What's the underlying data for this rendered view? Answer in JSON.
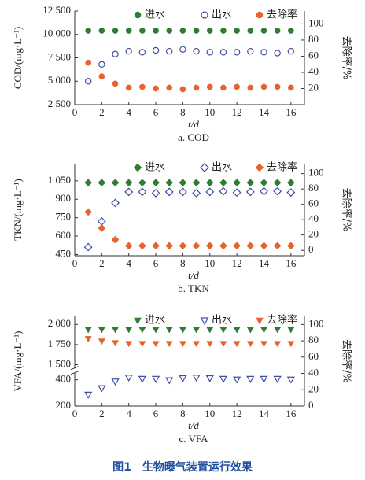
{
  "chart_data": [
    {
      "type": "scatter",
      "marker": "circle",
      "caption": "a. COD",
      "ylabel": "COD/(mg·L⁻¹)",
      "y2label": "去除率/%",
      "xlabel": "t/d",
      "x": [
        1,
        2,
        3,
        4,
        5,
        6,
        7,
        8,
        9,
        10,
        11,
        12,
        13,
        14,
        15,
        16
      ],
      "xlim": [
        0,
        17
      ],
      "xticks": [
        0,
        2,
        4,
        6,
        8,
        10,
        12,
        14,
        16
      ],
      "ylim": [
        2500,
        12500
      ],
      "yticks": [
        {
          "value": 2500,
          "label": "2 500"
        },
        {
          "value": 5000,
          "label": "5 000"
        },
        {
          "value": 7500,
          "label": "7 500"
        },
        {
          "value": 10000,
          "label": "10 000"
        },
        {
          "value": 12500,
          "label": "12 500"
        }
      ],
      "y2lim": [
        0,
        116
      ],
      "y2ticks": [
        20,
        40,
        60,
        80,
        100
      ],
      "series": [
        {
          "name": "进水",
          "color": "#2e7d32",
          "hollow": false,
          "values": [
            10400,
            10400,
            10400,
            10400,
            10400,
            10400,
            10400,
            10400,
            10400,
            10400,
            10400,
            10400,
            10400,
            10400,
            10400,
            10400
          ]
        },
        {
          "name": "出水",
          "color": "#3f4fa0",
          "hollow": true,
          "values": [
            5000,
            6800,
            7900,
            8200,
            8100,
            8300,
            8200,
            8400,
            8200,
            8100,
            8100,
            8100,
            8200,
            8100,
            8000,
            8200
          ]
        },
        {
          "name": "去除率",
          "color": "#e8622c",
          "hollow": false,
          "axis": "y2",
          "values": [
            52,
            35,
            26,
            21,
            22,
            20,
            21,
            19,
            21,
            22,
            21,
            22,
            21,
            22,
            22,
            21
          ]
        }
      ]
    },
    {
      "type": "scatter",
      "marker": "diamond",
      "caption": "b. TKN",
      "ylabel": "TKN/(mg·L⁻¹)",
      "y2label": "去除率/%",
      "xlabel": "t/d",
      "x": [
        1,
        2,
        3,
        4,
        5,
        6,
        7,
        8,
        9,
        10,
        11,
        12,
        13,
        14,
        15,
        16
      ],
      "xlim": [
        0,
        17
      ],
      "xticks": [
        0,
        2,
        4,
        6,
        8,
        10,
        12,
        14,
        16
      ],
      "ylim": [
        440,
        1190
      ],
      "yticks": [
        450,
        600,
        750,
        900,
        {
          "value": 1050,
          "label": "1 050"
        }
      ],
      "y2lim": [
        -7,
        113
      ],
      "y2ticks": [
        0,
        20,
        40,
        60,
        80,
        100
      ],
      "series": [
        {
          "name": "进水",
          "color": "#2e7d32",
          "hollow": false,
          "values": [
            1035,
            1035,
            1035,
            1035,
            1035,
            1035,
            1035,
            1035,
            1035,
            1035,
            1035,
            1035,
            1035,
            1035,
            1035,
            1035
          ]
        },
        {
          "name": "出水",
          "color": "#3f4fa0",
          "hollow": true,
          "values": [
            510,
            720,
            870,
            960,
            960,
            950,
            960,
            960,
            950,
            960,
            965,
            955,
            960,
            965,
            965,
            955
          ]
        },
        {
          "name": "去除率",
          "color": "#e8622c",
          "hollow": false,
          "axis": "y2",
          "values": [
            50,
            29,
            14,
            6,
            6,
            6,
            6,
            6,
            6,
            6,
            6,
            6,
            6,
            6,
            6,
            6
          ]
        }
      ]
    },
    {
      "type": "scatter",
      "marker": "triangle",
      "caption": "c. VFA",
      "ylabel": "VFA/(mg·L⁻¹)",
      "y2label": "去除率/%",
      "xlabel": "t/d",
      "x": [
        1,
        2,
        3,
        4,
        5,
        6,
        7,
        8,
        9,
        10,
        11,
        12,
        13,
        14,
        15,
        16
      ],
      "xlim": [
        0,
        17
      ],
      "xticks": [
        0,
        2,
        4,
        6,
        8,
        10,
        12,
        14,
        16
      ],
      "ylim": [
        200,
        2100
      ],
      "ybreak": [
        460,
        1450
      ],
      "yticks": [
        200,
        400,
        {
          "value": 1500,
          "label": "1 500"
        },
        {
          "value": 1750,
          "label": "1 750"
        },
        {
          "value": 2000,
          "label": "2 000"
        }
      ],
      "y2lim": [
        0,
        110
      ],
      "y2ticks": [
        0,
        20,
        40,
        60,
        80,
        100
      ],
      "series": [
        {
          "name": "进水",
          "color": "#2e7d32",
          "hollow": false,
          "values": [
            1940,
            1940,
            1940,
            1940,
            1940,
            1940,
            1940,
            1940,
            1940,
            1940,
            1940,
            1940,
            1940,
            1940,
            1940,
            1940
          ]
        },
        {
          "name": "出水",
          "color": "#3f4fa0",
          "hollow": true,
          "values": [
            290,
            340,
            390,
            420,
            410,
            410,
            400,
            415,
            420,
            415,
            410,
            405,
            410,
            410,
            410,
            405
          ]
        },
        {
          "name": "去除率",
          "color": "#e8622c",
          "hollow": false,
          "axis": "y2",
          "values": [
            83,
            80,
            78,
            77,
            77,
            77,
            77,
            77,
            77,
            77,
            77,
            77,
            77,
            77,
            77,
            77
          ]
        }
      ]
    }
  ],
  "figure_caption": "图1　生物曝气装置运行效果"
}
